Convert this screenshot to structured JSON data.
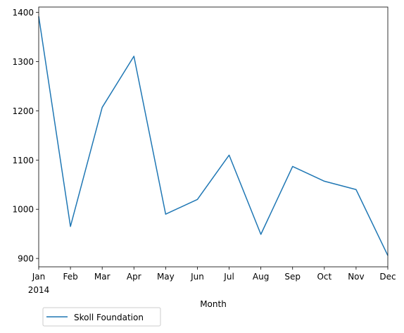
{
  "chart_data": {
    "type": "line",
    "title": "",
    "xlabel": "Month",
    "ylabel": "",
    "categories": [
      "Jan",
      "Feb",
      "Mar",
      "Apr",
      "May",
      "Jun",
      "Jul",
      "Aug",
      "Sep",
      "Oct",
      "Nov",
      "Dec"
    ],
    "year_label": "2014",
    "series": [
      {
        "name": "Skoll Foundation",
        "color": "#1f77b4",
        "values": [
          1392,
          965,
          1207,
          1311,
          990,
          1020,
          1110,
          949,
          1087,
          1057,
          1040,
          906
        ]
      }
    ],
    "yticks": [
      900,
      1000,
      1100,
      1200,
      1300,
      1400
    ],
    "ylim": [
      883,
      1411
    ],
    "grid": false,
    "legend_position": "bottom-left, below the plot"
  }
}
